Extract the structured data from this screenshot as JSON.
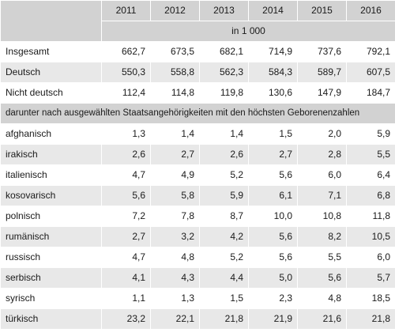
{
  "table": {
    "years": [
      "2011",
      "2012",
      "2013",
      "2014",
      "2015",
      "2016"
    ],
    "unit": "in 1 000",
    "rows_top": [
      {
        "label": "Insgesamt",
        "indent": 0,
        "values": [
          "662,7",
          "673,5",
          "682,1",
          "714,9",
          "737,6",
          "792,1"
        ]
      },
      {
        "label": "Deutsch",
        "indent": 1,
        "values": [
          "550,3",
          "558,8",
          "562,3",
          "584,3",
          "589,7",
          "607,5"
        ]
      },
      {
        "label": "Nicht deutsch",
        "indent": 1,
        "values": [
          "112,4",
          "114,8",
          "119,8",
          "130,6",
          "147,9",
          "184,7"
        ]
      }
    ],
    "section_label": "darunter nach ausgewählten Staatsangehörigkeiten mit den höchsten Geborenenzahlen",
    "rows_bottom": [
      {
        "label": "afghanisch",
        "indent": 2,
        "values": [
          "1,3",
          "1,4",
          "1,4",
          "1,5",
          "2,0",
          "5,9"
        ]
      },
      {
        "label": "irakisch",
        "indent": 2,
        "values": [
          "2,6",
          "2,7",
          "2,6",
          "2,7",
          "2,8",
          "5,5"
        ]
      },
      {
        "label": "italienisch",
        "indent": 2,
        "values": [
          "4,7",
          "4,9",
          "5,2",
          "5,6",
          "6,0",
          "6,4"
        ]
      },
      {
        "label": "kosovarisch",
        "indent": 2,
        "values": [
          "5,6",
          "5,8",
          "5,9",
          "6,1",
          "7,1",
          "6,8"
        ]
      },
      {
        "label": "polnisch",
        "indent": 2,
        "values": [
          "7,2",
          "7,8",
          "8,7",
          "10,0",
          "10,8",
          "11,8"
        ]
      },
      {
        "label": "rumänisch",
        "indent": 2,
        "values": [
          "2,7",
          "3,2",
          "4,2",
          "5,6",
          "8,2",
          "10,5"
        ]
      },
      {
        "label": "russisch",
        "indent": 2,
        "values": [
          "4,7",
          "4,8",
          "5,2",
          "5,6",
          "5,5",
          "6,0"
        ]
      },
      {
        "label": "serbisch",
        "indent": 2,
        "values": [
          "4,1",
          "4,3",
          "4,4",
          "5,0",
          "5,6",
          "5,7"
        ]
      },
      {
        "label": "syrisch",
        "indent": 2,
        "values": [
          "1,1",
          "1,3",
          "1,5",
          "2,3",
          "4,8",
          "18,5"
        ]
      },
      {
        "label": "türkisch",
        "indent": 2,
        "values": [
          "23,2",
          "22,1",
          "21,8",
          "21,9",
          "21,6",
          "21,8"
        ]
      }
    ]
  }
}
